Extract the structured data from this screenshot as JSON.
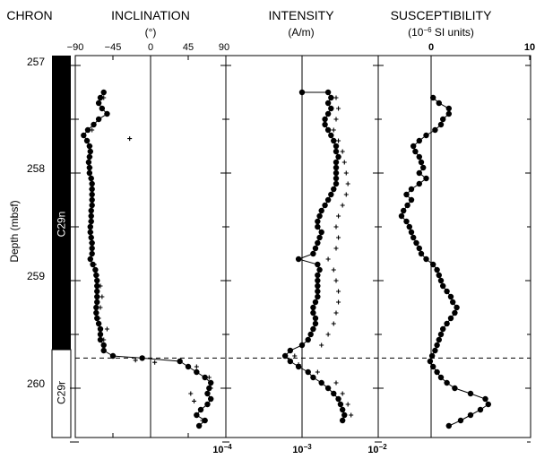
{
  "chart_data": [
    {
      "type": "scatter",
      "panel": "inclination",
      "title": "INCLINATION",
      "units": "(°)",
      "xlim": [
        -90,
        90
      ],
      "ylim": [
        257,
        260.5
      ],
      "ylabel": "Depth (mbsf)",
      "yticks": [
        "257",
        "258",
        "259",
        "260"
      ],
      "xticks": [
        "−90",
        "−45",
        "0",
        "45",
        "90"
      ],
      "reference_line_x": 0,
      "series": [
        {
          "marker": "dot-line",
          "points": [
            [
              -56,
              257.25
            ],
            [
              -60,
              257.3
            ],
            [
              -62,
              257.35
            ],
            [
              -58,
              257.4
            ],
            [
              -52,
              257.45
            ],
            [
              -62,
              257.5
            ],
            [
              -68,
              257.55
            ],
            [
              -75,
              257.6
            ],
            [
              -80,
              257.65
            ],
            [
              -76,
              257.7
            ],
            [
              -73,
              257.75
            ],
            [
              -72,
              257.8
            ],
            [
              -73,
              257.85
            ],
            [
              -74,
              257.9
            ],
            [
              -73,
              257.95
            ],
            [
              -73,
              258.0
            ],
            [
              -71,
              258.05
            ],
            [
              -70,
              258.1
            ],
            [
              -70,
              258.15
            ],
            [
              -70,
              258.2
            ],
            [
              -70,
              258.25
            ],
            [
              -70,
              258.3
            ],
            [
              -71,
              258.35
            ],
            [
              -71,
              258.4
            ],
            [
              -71,
              258.45
            ],
            [
              -72,
              258.5
            ],
            [
              -72,
              258.55
            ],
            [
              -71,
              258.6
            ],
            [
              -70,
              258.65
            ],
            [
              -70,
              258.7
            ],
            [
              -70,
              258.75
            ],
            [
              -72,
              258.8
            ],
            [
              -69,
              258.85
            ],
            [
              -66,
              258.9
            ],
            [
              -65,
              258.95
            ],
            [
              -64,
              259.0
            ],
            [
              -64,
              259.05
            ],
            [
              -64,
              259.1
            ],
            [
              -64,
              259.15
            ],
            [
              -64,
              259.2
            ],
            [
              -65,
              259.25
            ],
            [
              -65,
              259.3
            ],
            [
              -64,
              259.35
            ],
            [
              -62,
              259.4
            ],
            [
              -60,
              259.45
            ],
            [
              -60,
              259.5
            ],
            [
              -60,
              259.55
            ],
            [
              -56,
              259.6
            ],
            [
              -56,
              259.65
            ],
            [
              -45,
              259.7
            ],
            [
              -10,
              259.72
            ],
            [
              35,
              259.75
            ],
            [
              45,
              259.8
            ],
            [
              55,
              259.85
            ],
            [
              65,
              259.9
            ],
            [
              72,
              259.95
            ],
            [
              70,
              260.0
            ],
            [
              68,
              260.05
            ],
            [
              72,
              260.1
            ],
            [
              68,
              260.15
            ],
            [
              60,
              260.2
            ],
            [
              55,
              260.25
            ],
            [
              65,
              260.3
            ],
            [
              58,
              260.35
            ]
          ]
        },
        {
          "marker": "cross",
          "points": [
            [
              -56,
              257.3
            ],
            [
              -58,
              257.4
            ],
            [
              -62,
              257.5
            ],
            [
              -70,
              257.6
            ],
            [
              -25,
              257.68
            ],
            [
              -72,
              257.75
            ],
            [
              -72,
              257.85
            ],
            [
              -72,
              257.95
            ],
            [
              -72,
              258.05
            ],
            [
              -71,
              258.15
            ],
            [
              -70,
              258.25
            ],
            [
              -71,
              258.35
            ],
            [
              -72,
              258.45
            ],
            [
              -71,
              258.55
            ],
            [
              -71,
              258.65
            ],
            [
              -70,
              258.75
            ],
            [
              -67,
              258.85
            ],
            [
              -64,
              258.95
            ],
            [
              -60,
              259.05
            ],
            [
              -58,
              259.15
            ],
            [
              -60,
              259.25
            ],
            [
              -62,
              259.35
            ],
            [
              -52,
              259.45
            ],
            [
              -56,
              259.55
            ],
            [
              -18,
              259.74
            ],
            [
              5,
              259.76
            ],
            [
              55,
              259.8
            ],
            [
              70,
              259.9
            ],
            [
              72,
              260.0
            ],
            [
              48,
              260.05
            ],
            [
              52,
              260.12
            ],
            [
              60,
              260.2
            ],
            [
              62,
              260.3
            ]
          ]
        }
      ]
    },
    {
      "type": "scatter",
      "panel": "intensity",
      "title": "INTENSITY",
      "units": "(A/m)",
      "xscale": "log",
      "xlim": [
        0.0001,
        0.01
      ],
      "ylim": [
        257,
        260.5
      ],
      "xticks": [
        "10",
        "10",
        "10"
      ],
      "xtick_exponents": [
        "−4",
        "−3",
        "−2"
      ],
      "reference_line_x": 0.001,
      "series": [
        {
          "marker": "dot-line",
          "points": [
            [
              0.001,
              257.25
            ],
            [
              0.0022,
              257.25
            ],
            [
              0.0024,
              257.3
            ],
            [
              0.0022,
              257.35
            ],
            [
              0.0024,
              257.4
            ],
            [
              0.0022,
              257.45
            ],
            [
              0.002,
              257.5
            ],
            [
              0.002,
              257.55
            ],
            [
              0.0022,
              257.6
            ],
            [
              0.0024,
              257.65
            ],
            [
              0.0026,
              257.7
            ],
            [
              0.0028,
              257.75
            ],
            [
              0.0028,
              257.8
            ],
            [
              0.003,
              257.85
            ],
            [
              0.0028,
              257.9
            ],
            [
              0.0028,
              257.95
            ],
            [
              0.0028,
              258.0
            ],
            [
              0.0028,
              258.05
            ],
            [
              0.0028,
              258.1
            ],
            [
              0.0026,
              258.15
            ],
            [
              0.0024,
              258.2
            ],
            [
              0.0022,
              258.25
            ],
            [
              0.002,
              258.3
            ],
            [
              0.0018,
              258.35
            ],
            [
              0.0017,
              258.4
            ],
            [
              0.0016,
              258.45
            ],
            [
              0.0016,
              258.5
            ],
            [
              0.0018,
              258.55
            ],
            [
              0.0017,
              258.6
            ],
            [
              0.0016,
              258.65
            ],
            [
              0.0015,
              258.7
            ],
            [
              0.0014,
              258.75
            ],
            [
              0.0009,
              258.8
            ],
            [
              0.0016,
              258.85
            ],
            [
              0.0017,
              258.9
            ],
            [
              0.0016,
              258.95
            ],
            [
              0.0016,
              259.0
            ],
            [
              0.0016,
              259.05
            ],
            [
              0.0016,
              259.1
            ],
            [
              0.0016,
              259.15
            ],
            [
              0.0015,
              259.2
            ],
            [
              0.0014,
              259.25
            ],
            [
              0.0014,
              259.3
            ],
            [
              0.0015,
              259.35
            ],
            [
              0.0015,
              259.4
            ],
            [
              0.0014,
              259.45
            ],
            [
              0.0013,
              259.5
            ],
            [
              0.0012,
              259.55
            ],
            [
              0.001,
              259.6
            ],
            [
              0.0007,
              259.65
            ],
            [
              0.0006,
              259.7
            ],
            [
              0.0007,
              259.75
            ],
            [
              0.0009,
              259.8
            ],
            [
              0.0012,
              259.85
            ],
            [
              0.0014,
              259.9
            ],
            [
              0.0018,
              259.95
            ],
            [
              0.0022,
              260.0
            ],
            [
              0.0026,
              260.05
            ],
            [
              0.003,
              260.1
            ],
            [
              0.0032,
              260.15
            ],
            [
              0.0034,
              260.2
            ],
            [
              0.0036,
              260.25
            ],
            [
              0.0034,
              260.3
            ]
          ]
        },
        {
          "marker": "cross",
          "points": [
            [
              0.0028,
              257.3
            ],
            [
              0.003,
              257.4
            ],
            [
              0.0028,
              257.5
            ],
            [
              0.0026,
              257.6
            ],
            [
              0.003,
              257.7
            ],
            [
              0.0034,
              257.8
            ],
            [
              0.0036,
              257.9
            ],
            [
              0.0038,
              258.0
            ],
            [
              0.004,
              258.1
            ],
            [
              0.0038,
              258.2
            ],
            [
              0.0034,
              258.3
            ],
            [
              0.003,
              258.4
            ],
            [
              0.0028,
              258.5
            ],
            [
              0.003,
              258.6
            ],
            [
              0.0028,
              258.7
            ],
            [
              0.0022,
              258.8
            ],
            [
              0.0026,
              258.9
            ],
            [
              0.0028,
              259.0
            ],
            [
              0.003,
              259.1
            ],
            [
              0.003,
              259.2
            ],
            [
              0.0028,
              259.3
            ],
            [
              0.0026,
              259.4
            ],
            [
              0.0022,
              259.5
            ],
            [
              0.0018,
              259.6
            ],
            [
              0.0008,
              259.7
            ],
            [
              0.0009,
              259.78
            ],
            [
              0.0016,
              259.85
            ],
            [
              0.0028,
              259.95
            ],
            [
              0.0034,
              260.05
            ],
            [
              0.004,
              260.15
            ],
            [
              0.0044,
              260.25
            ]
          ]
        }
      ]
    },
    {
      "type": "line",
      "panel": "susceptibility",
      "title": "SUSCEPTIBILITY",
      "units_prefix": "(10",
      "units_exponent": "−6",
      "units_suffix": " SI units)",
      "xlim": [
        -6,
        10
      ],
      "ylim": [
        257,
        260.5
      ],
      "xticks": [
        "0",
        "10"
      ],
      "reference_line_x": 0,
      "series": [
        {
          "marker": "dot-line",
          "points": [
            [
              0.2,
              257.3
            ],
            [
              0.8,
              257.35
            ],
            [
              1.8,
              257.4
            ],
            [
              1.8,
              257.45
            ],
            [
              1.2,
              257.5
            ],
            [
              1.0,
              257.55
            ],
            [
              0.4,
              257.6
            ],
            [
              -0.5,
              257.65
            ],
            [
              -1.2,
              257.7
            ],
            [
              -1.8,
              257.75
            ],
            [
              -1.6,
              257.8
            ],
            [
              -1.2,
              257.85
            ],
            [
              -1.0,
              257.9
            ],
            [
              -0.8,
              257.95
            ],
            [
              -1.2,
              258.0
            ],
            [
              -0.5,
              258.05
            ],
            [
              -1.2,
              258.1
            ],
            [
              -2.0,
              258.15
            ],
            [
              -2.5,
              258.2
            ],
            [
              -2.0,
              258.25
            ],
            [
              -2.4,
              258.3
            ],
            [
              -2.8,
              258.35
            ],
            [
              -3.0,
              258.4
            ],
            [
              -2.5,
              258.45
            ],
            [
              -2.2,
              258.5
            ],
            [
              -2.0,
              258.55
            ],
            [
              -1.8,
              258.6
            ],
            [
              -1.5,
              258.65
            ],
            [
              -1.2,
              258.7
            ],
            [
              -1.0,
              258.75
            ],
            [
              -0.5,
              258.8
            ],
            [
              0.2,
              258.85
            ],
            [
              0.6,
              258.9
            ],
            [
              0.8,
              258.95
            ],
            [
              1.0,
              259.0
            ],
            [
              1.2,
              259.05
            ],
            [
              1.6,
              259.1
            ],
            [
              2.0,
              259.15
            ],
            [
              2.2,
              259.2
            ],
            [
              2.6,
              259.25
            ],
            [
              2.4,
              259.3
            ],
            [
              2.0,
              259.35
            ],
            [
              1.6,
              259.4
            ],
            [
              1.2,
              259.45
            ],
            [
              1.0,
              259.5
            ],
            [
              0.8,
              259.55
            ],
            [
              0.6,
              259.6
            ],
            [
              0.4,
              259.65
            ],
            [
              0.1,
              259.7
            ],
            [
              -0.1,
              259.75
            ],
            [
              0.2,
              259.8
            ],
            [
              0.6,
              259.85
            ],
            [
              1.0,
              259.9
            ],
            [
              1.6,
              259.95
            ],
            [
              2.4,
              260.0
            ],
            [
              4.0,
              260.05
            ],
            [
              5.5,
              260.1
            ],
            [
              5.8,
              260.15
            ],
            [
              5.0,
              260.2
            ],
            [
              4.0,
              260.25
            ],
            [
              3.0,
              260.3
            ],
            [
              1.8,
              260.35
            ]
          ]
        }
      ]
    }
  ],
  "header": {
    "chron": "CHRON",
    "chron_labels": [
      "C29n",
      "C29r"
    ],
    "chron_boundary_depth": 259.72
  }
}
